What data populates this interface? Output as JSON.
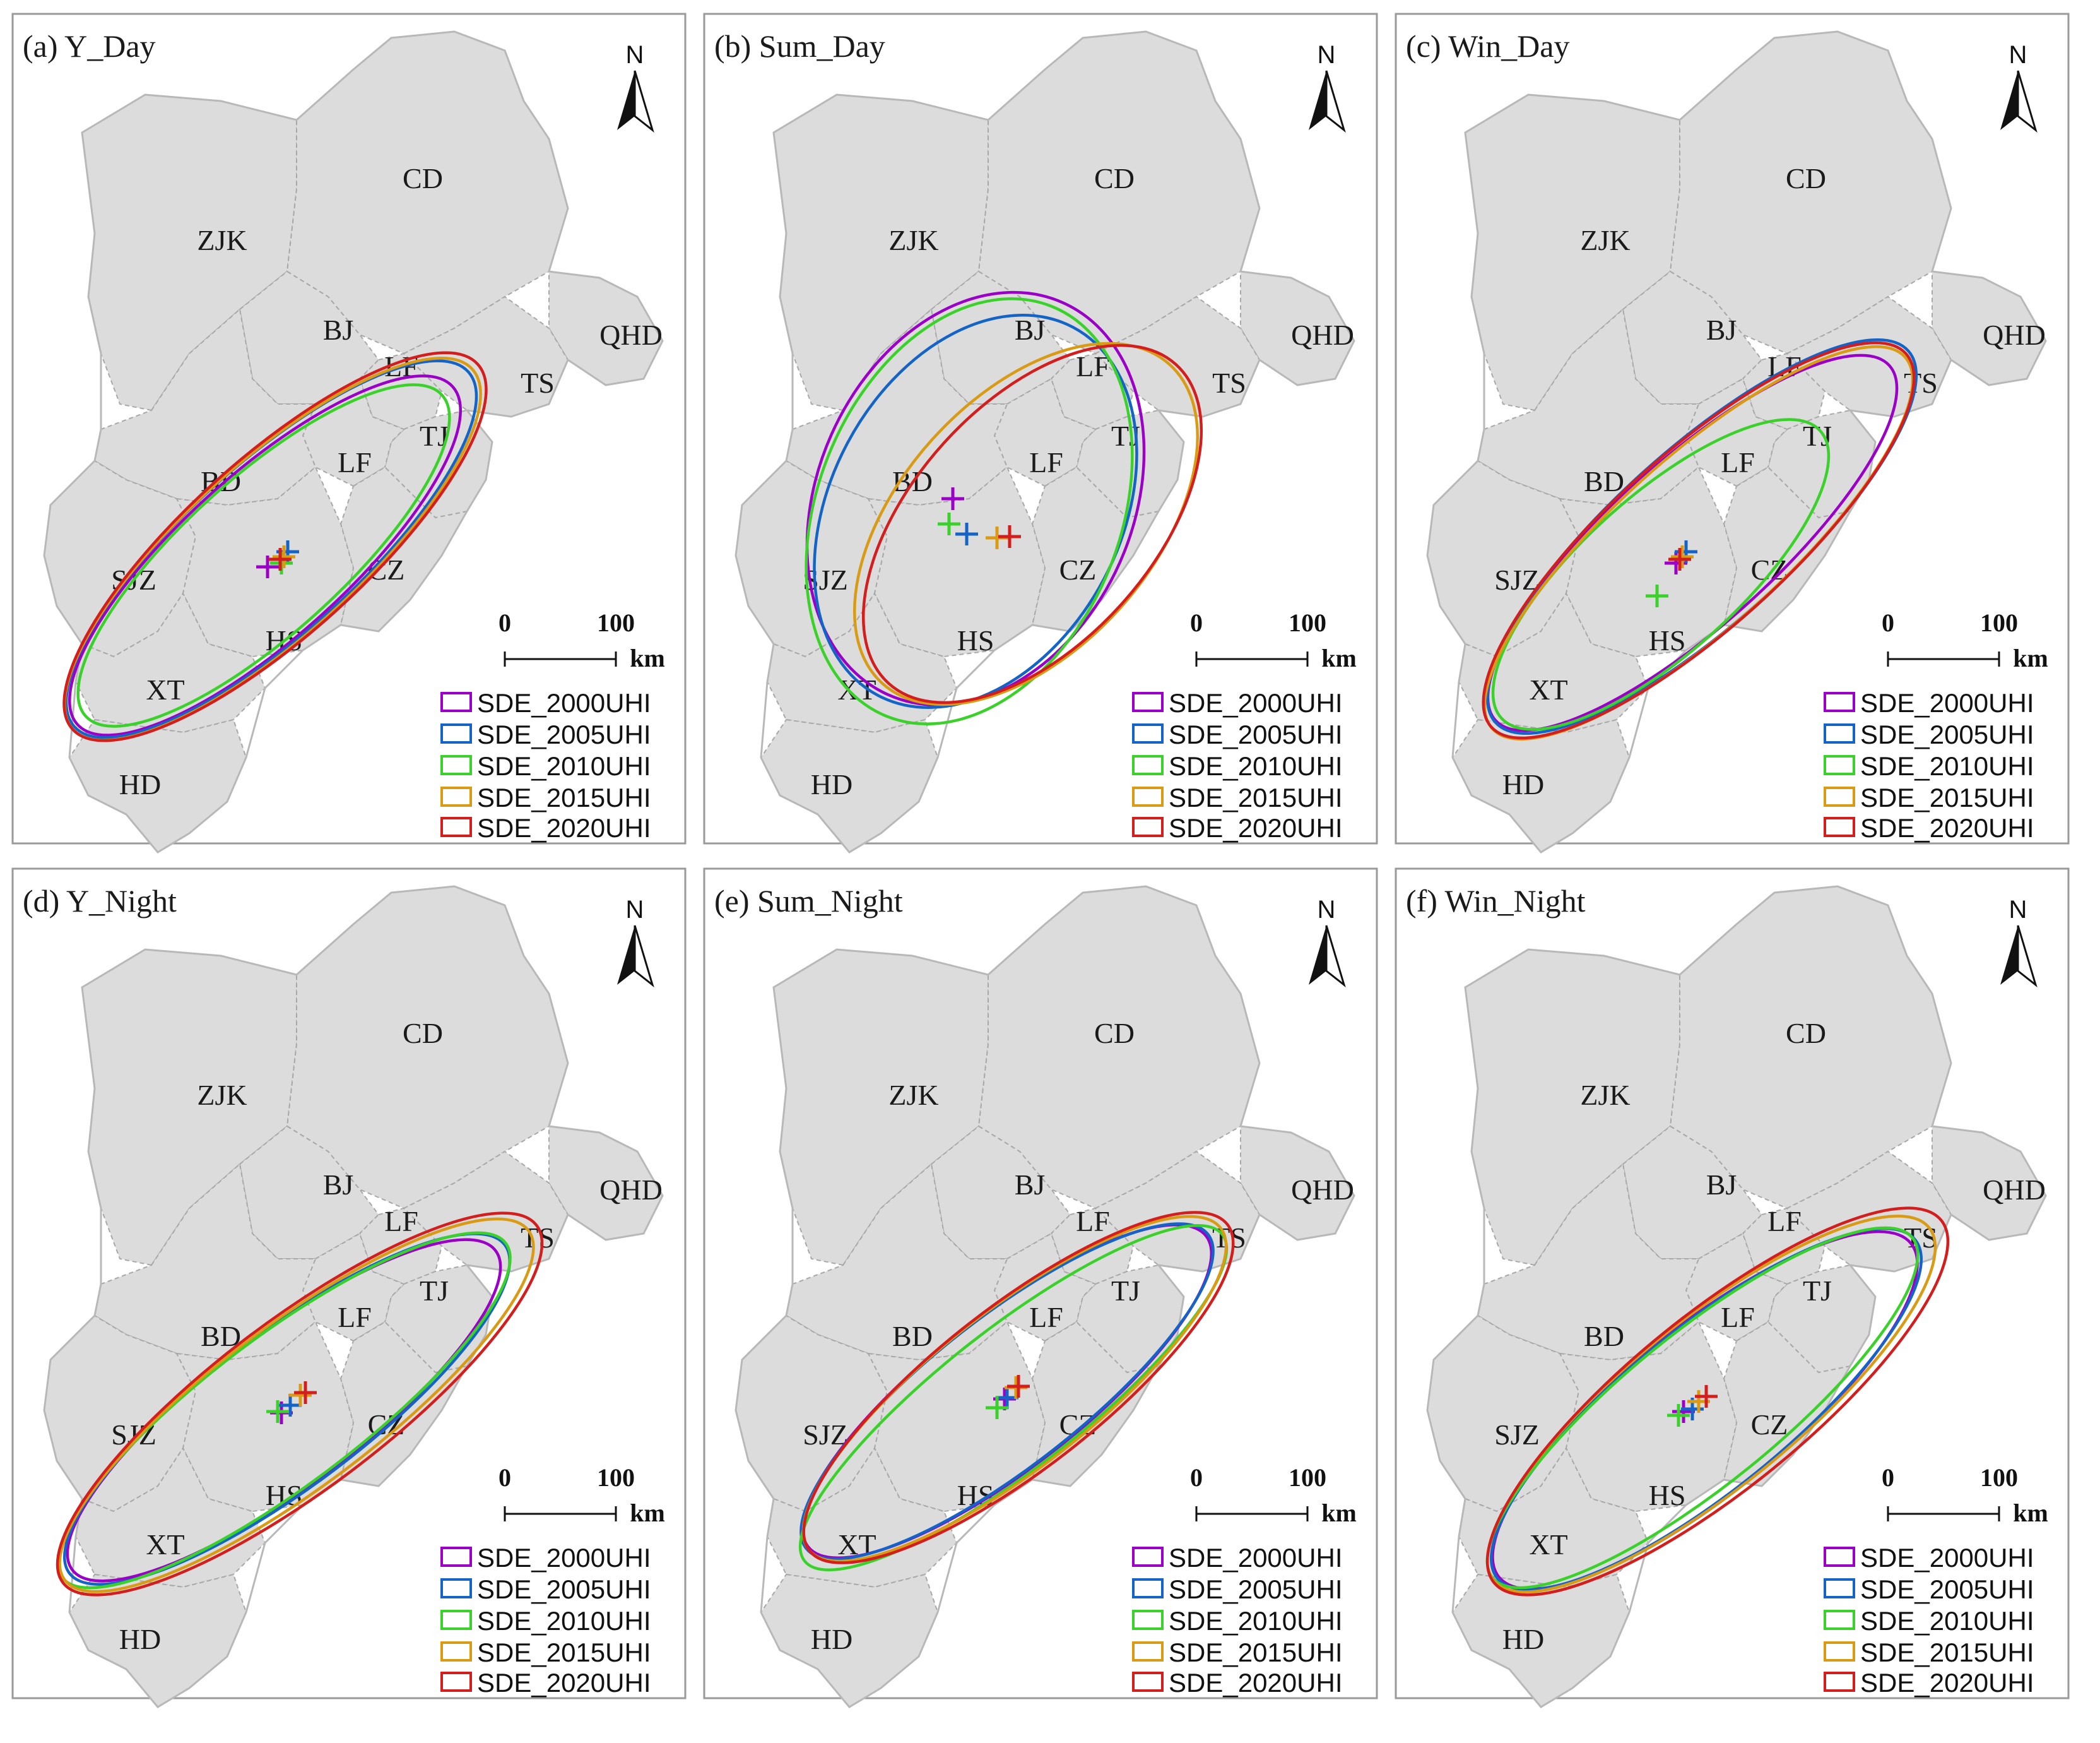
{
  "figure": {
    "north_label": "N",
    "scale_bar": {
      "start": "0",
      "end": "100",
      "unit": "km"
    },
    "series": [
      {
        "name": "SDE_2000UHI",
        "color": "#9b00c8"
      },
      {
        "name": "SDE_2005UHI",
        "color": "#1464c8"
      },
      {
        "name": "SDE_2010UHI",
        "color": "#3ad12a"
      },
      {
        "name": "SDE_2015UHI",
        "color": "#d99a14"
      },
      {
        "name": "SDE_2020UHI",
        "color": "#d41e1e"
      }
    ],
    "city_labels": [
      "ZJK",
      "CD",
      "BJ",
      "QHD",
      "LF",
      "TS",
      "TJ",
      "LF",
      "BD",
      "SJZ",
      "CZ",
      "HS",
      "XT",
      "HD"
    ],
    "panels": [
      {
        "id": "a",
        "title": "(a) Y_Day"
      },
      {
        "id": "b",
        "title": "(b) Sum_Day"
      },
      {
        "id": "c",
        "title": "(c) Win_Day"
      },
      {
        "id": "d",
        "title": "(d) Y_Night"
      },
      {
        "id": "e",
        "title": "(e) Sum_Night"
      },
      {
        "id": "f",
        "title": "(f) Win_Night"
      }
    ]
  }
}
